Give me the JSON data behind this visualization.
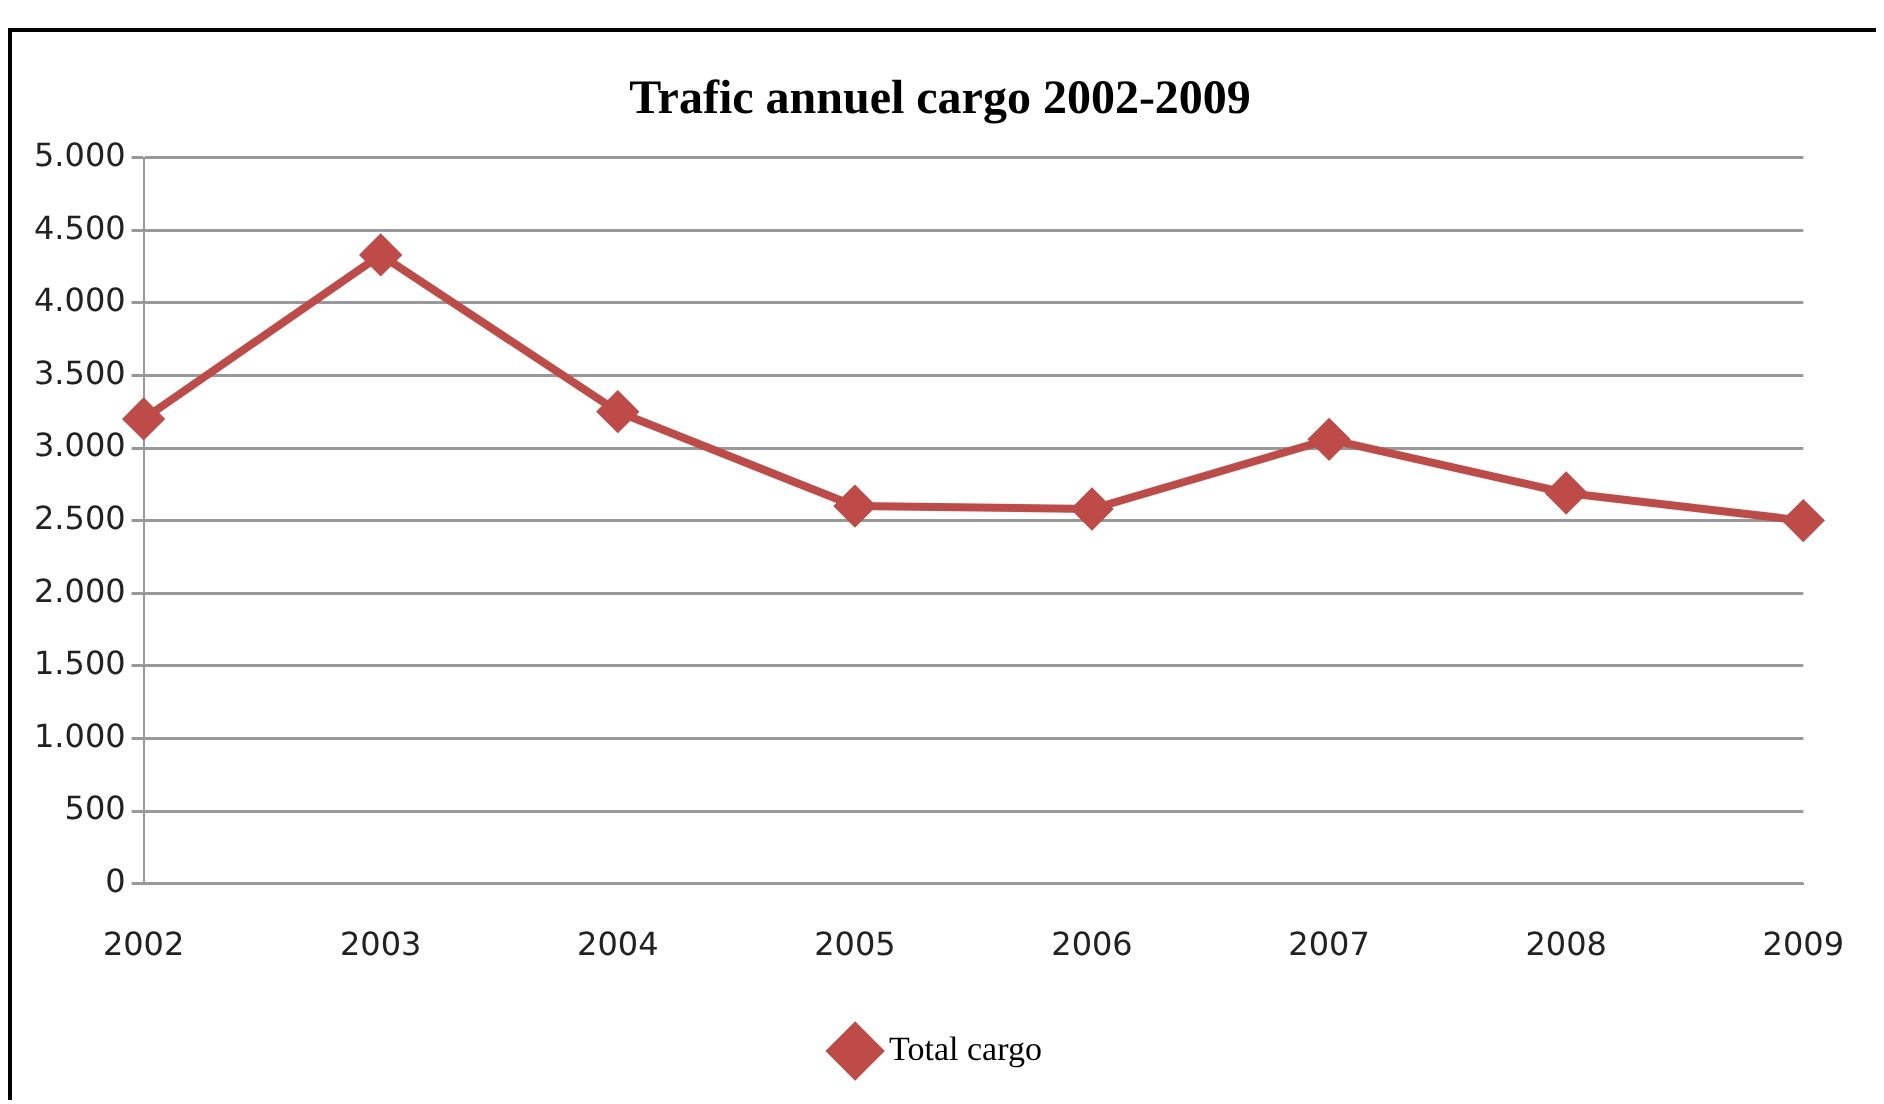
{
  "chart_data": {
    "type": "line",
    "title": "Trafic annuel cargo 2002-2009",
    "categories": [
      "2002",
      "2003",
      "2004",
      "2005",
      "2006",
      "2007",
      "2008",
      "2009"
    ],
    "series": [
      {
        "name": "Total cargo",
        "color": "#be4b48",
        "values": [
          3200,
          4330,
          3250,
          2600,
          2580,
          3060,
          2690,
          2500
        ]
      }
    ],
    "ylim": [
      0,
      5000
    ],
    "yticks": [
      {
        "value": 0,
        "label": "0"
      },
      {
        "value": 500,
        "label": "500"
      },
      {
        "value": 1000,
        "label": "1.000"
      },
      {
        "value": 1500,
        "label": "1.500"
      },
      {
        "value": 2000,
        "label": "2.000"
      },
      {
        "value": 2500,
        "label": "2.500"
      },
      {
        "value": 3000,
        "label": "3.000"
      },
      {
        "value": 3500,
        "label": "3.500"
      },
      {
        "value": 4000,
        "label": "4.000"
      },
      {
        "value": 4500,
        "label": "4.500"
      },
      {
        "value": 5000,
        "label": "5.000"
      }
    ],
    "grid": "y",
    "legend": "bottom",
    "marker": "diamond",
    "line_style": "solid"
  }
}
